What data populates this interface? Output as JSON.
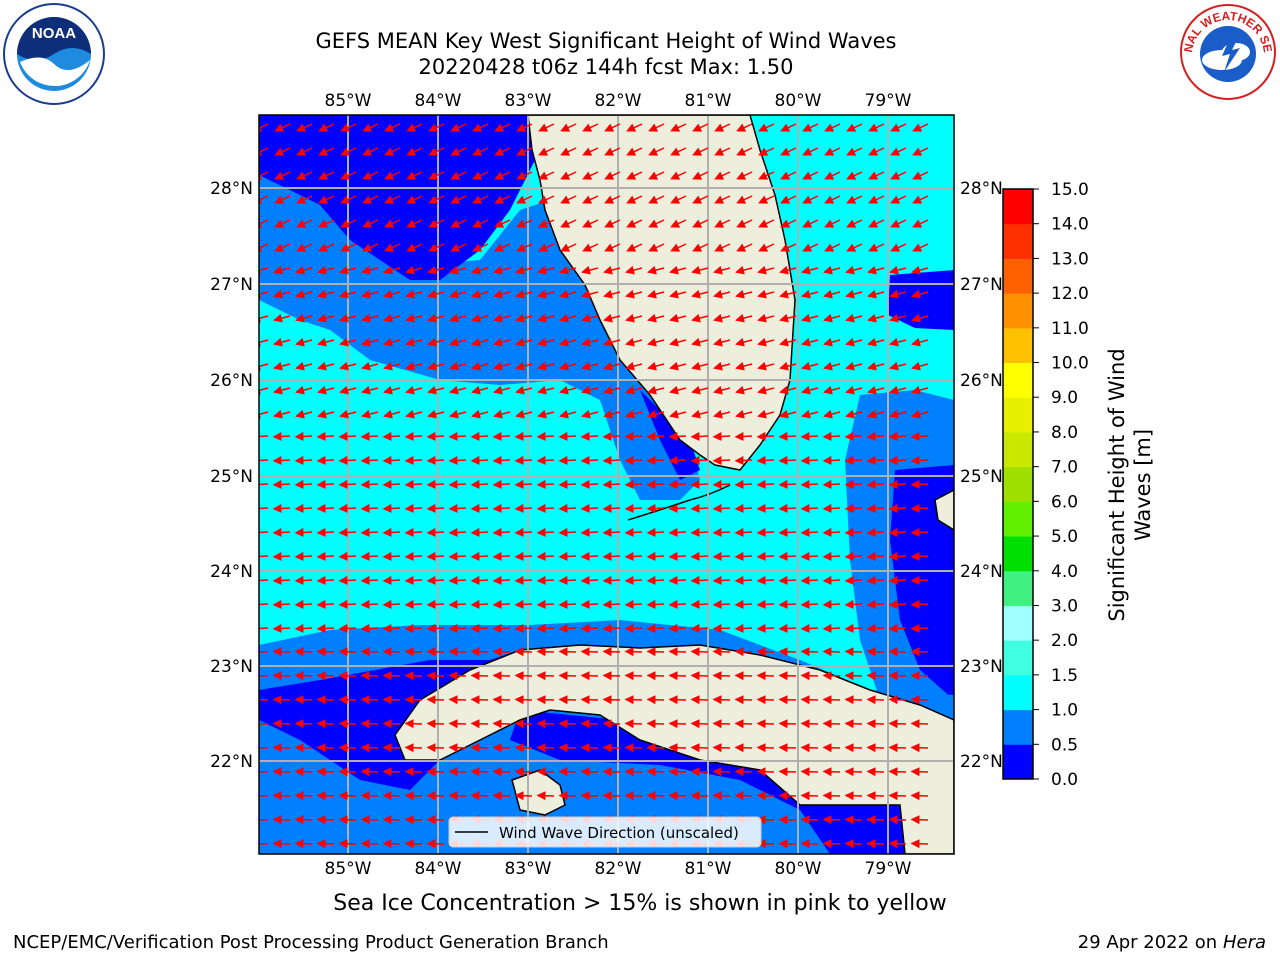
{
  "title_line1": "GEFS MEAN Key West Significant Height of Wind Waves",
  "title_line2": "20220428 t06z 144h fcst   Max: 1.50",
  "lon_labels": [
    "85°W",
    "84°W",
    "83°W",
    "82°W",
    "81°W",
    "80°W",
    "79°W"
  ],
  "lat_labels": [
    "28°N",
    "27°N",
    "26°N",
    "25°N",
    "24°N",
    "23°N",
    "22°N"
  ],
  "legend_label": "Wind Wave Direction (unscaled)",
  "colorbar": {
    "label_line1": "Significant Height of Wind",
    "label_line2": "Waves [m]",
    "ticks": [
      "0.0",
      "0.5",
      "1.0",
      "1.5",
      "2.0",
      "3.0",
      "4.0",
      "5.0",
      "6.0",
      "7.0",
      "8.0",
      "9.0",
      "10.0",
      "11.0",
      "12.0",
      "13.0",
      "14.0",
      "15.0"
    ],
    "colors": [
      "#0000ff",
      "#0080ff",
      "#00ffff",
      "#40ffe0",
      "#a0ffff",
      "#40f080",
      "#00e000",
      "#60f000",
      "#a0e000",
      "#c8e800",
      "#e8f000",
      "#ffff00",
      "#ffc000",
      "#ff9000",
      "#ff6000",
      "#ff3000",
      "#ff0000"
    ]
  },
  "colors": {
    "land": "#eeeedd",
    "vector": "#ff0000",
    "grid": "#b0b0b0"
  },
  "footer": {
    "sea_ice_note": "Sea Ice Concentration > 15% is shown in pink to yellow",
    "branch": "NCEP/EMC/Verification Post Processing Product Generation Branch",
    "date": "29 Apr 2022 on",
    "machine": "Hera"
  },
  "logos": {
    "left": "NOAA",
    "right": "NATIONAL WEATHER SERVICE"
  }
}
